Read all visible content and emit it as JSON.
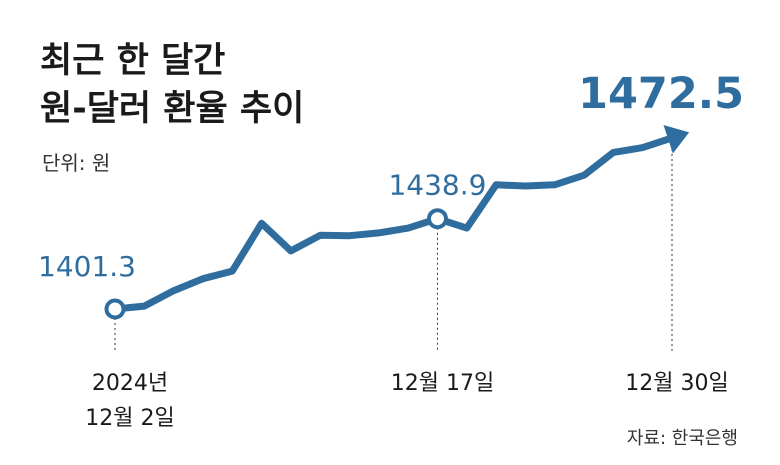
{
  "chart_data": {
    "type": "line",
    "title_lines": [
      "최근 한 달간",
      "원-달러 환율 추이"
    ],
    "unit": "단위: 원",
    "source": "자료: 한국은행",
    "x_labels": [
      {
        "index": 0,
        "lines": [
          "2024년",
          "12월 2일"
        ]
      },
      {
        "index": 11,
        "lines": [
          "12월 17일"
        ]
      },
      {
        "index": 19,
        "lines": [
          "12월 30일"
        ]
      }
    ],
    "values": [
      1401.3,
      1402.5,
      1408.9,
      1413.9,
      1417.1,
      1437.0,
      1425.5,
      1432.0,
      1431.8,
      1433.0,
      1435.0,
      1438.9,
      1435.0,
      1453.0,
      1452.5,
      1453.0,
      1457.0,
      1466.5,
      1468.5,
      1472.5
    ],
    "annotations": [
      {
        "index": 0,
        "label": "1401.3",
        "style": "normal",
        "marker": true
      },
      {
        "index": 11,
        "label": "1438.9",
        "style": "normal",
        "marker": true
      },
      {
        "index": 19,
        "label": "1472.5",
        "style": "big",
        "marker": false,
        "arrow": true
      }
    ],
    "line_color": "#2f6d9f",
    "grid": false,
    "legend": "none"
  }
}
